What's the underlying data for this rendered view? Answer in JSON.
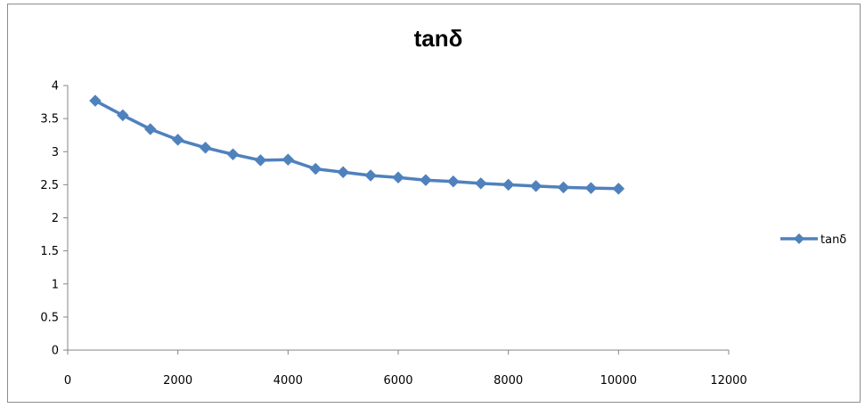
{
  "chart_data": {
    "type": "line",
    "title": "tanδ",
    "xlabel": "",
    "ylabel": "",
    "xlim": [
      0,
      12000
    ],
    "ylim": [
      0,
      4
    ],
    "x_ticks": [
      0,
      2000,
      4000,
      6000,
      8000,
      10000,
      12000
    ],
    "x_tick_labels": [
      "0",
      "2000",
      "4000",
      "6000",
      "8000",
      "10000",
      "12000"
    ],
    "y_ticks": [
      0,
      0.5,
      1,
      1.5,
      2,
      2.5,
      3,
      3.5,
      4
    ],
    "y_tick_labels": [
      "0",
      "0.5",
      "1",
      "1.5",
      "2",
      "2.5",
      "3",
      "3.5",
      "4"
    ],
    "grid": false,
    "legend_position": "right",
    "series": [
      {
        "name": "tanδ",
        "color": "#4f81bd",
        "marker": "diamond",
        "x": [
          500,
          1000,
          1500,
          2000,
          2500,
          3000,
          3500,
          4000,
          4500,
          5000,
          5500,
          6000,
          6500,
          7000,
          7500,
          8000,
          8500,
          9000,
          9500,
          10000
        ],
        "y": [
          3.77,
          3.55,
          3.34,
          3.18,
          3.06,
          2.96,
          2.87,
          2.88,
          2.74,
          2.69,
          2.64,
          2.61,
          2.57,
          2.55,
          2.52,
          2.5,
          2.48,
          2.46,
          2.45,
          2.44
        ]
      }
    ]
  }
}
